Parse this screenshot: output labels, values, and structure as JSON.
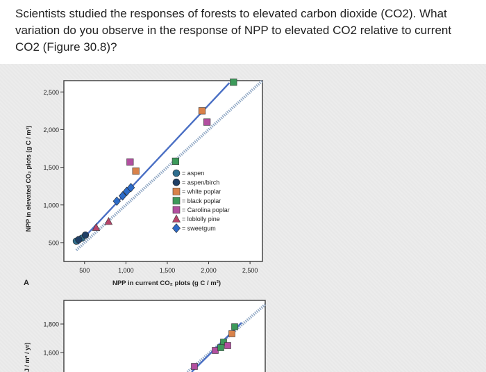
{
  "question": "Scientists studied the responses of forests to elevated carbon dioxide (CO2). What variation do you observe in the response of NPP to elevated CO2 relative to current CO2 (Figure 30.8)?",
  "panel_a_letter": "A",
  "chart_data": [
    {
      "type": "scatter",
      "title": "",
      "xlabel": "NPP in current CO₂ plots (g C / m²)",
      "ylabel": "NPP in elevated CO₂ plots (g C / m²)",
      "xticks": [
        "500",
        "1,000",
        "1,500",
        "2,000",
        "2,500"
      ],
      "yticks": [
        "500",
        "1,000",
        "1,500",
        "2,000",
        "2,500"
      ],
      "xlim": [
        250,
        2650
      ],
      "ylim": [
        250,
        2650
      ],
      "reference_line": "1:1 (dotted)",
      "fit_line": "solid, blue",
      "legend_position": "lower-right",
      "series": [
        {
          "name": "aspen",
          "marker": "circle",
          "color": "#2f6e8e",
          "x": [
            400,
            470
          ],
          "y": [
            520,
            560
          ]
        },
        {
          "name": "aspen/birch",
          "marker": "circle",
          "color": "#1f3f66",
          "x": [
            430,
            510
          ],
          "y": [
            540,
            600
          ]
        },
        {
          "name": "white poplar",
          "marker": "square",
          "color": "#d9824a",
          "x": [
            1120,
            1920
          ],
          "y": [
            1450,
            2250
          ]
        },
        {
          "name": "black poplar",
          "marker": "square",
          "color": "#3c9a5a",
          "x": [
            1600,
            2300
          ],
          "y": [
            1580,
            2630
          ]
        },
        {
          "name": "Carolina poplar",
          "marker": "square",
          "color": "#b24fa0",
          "x": [
            1050,
            1980
          ],
          "y": [
            1570,
            2100
          ]
        },
        {
          "name": "loblolly pine",
          "marker": "triangle",
          "color": "#b7446a",
          "x": [
            640,
            790
          ],
          "y": [
            700,
            780
          ]
        },
        {
          "name": "sweetgum",
          "marker": "diamond",
          "color": "#2c6bc8",
          "x": [
            890,
            960,
            1010,
            1060
          ],
          "y": [
            1050,
            1120,
            1180,
            1230
          ]
        }
      ]
    },
    {
      "type": "scatter",
      "title": "",
      "ylabel": "",
      "y_unit_fragment": "J / m² / yr)",
      "yticks": [
        "1,800",
        "1,600"
      ],
      "series": [
        {
          "marker": "square",
          "color": "#b24fa0",
          "points_visible": 4
        },
        {
          "marker": "square",
          "color": "#3c9a5a",
          "points_visible": 3
        }
      ]
    }
  ]
}
